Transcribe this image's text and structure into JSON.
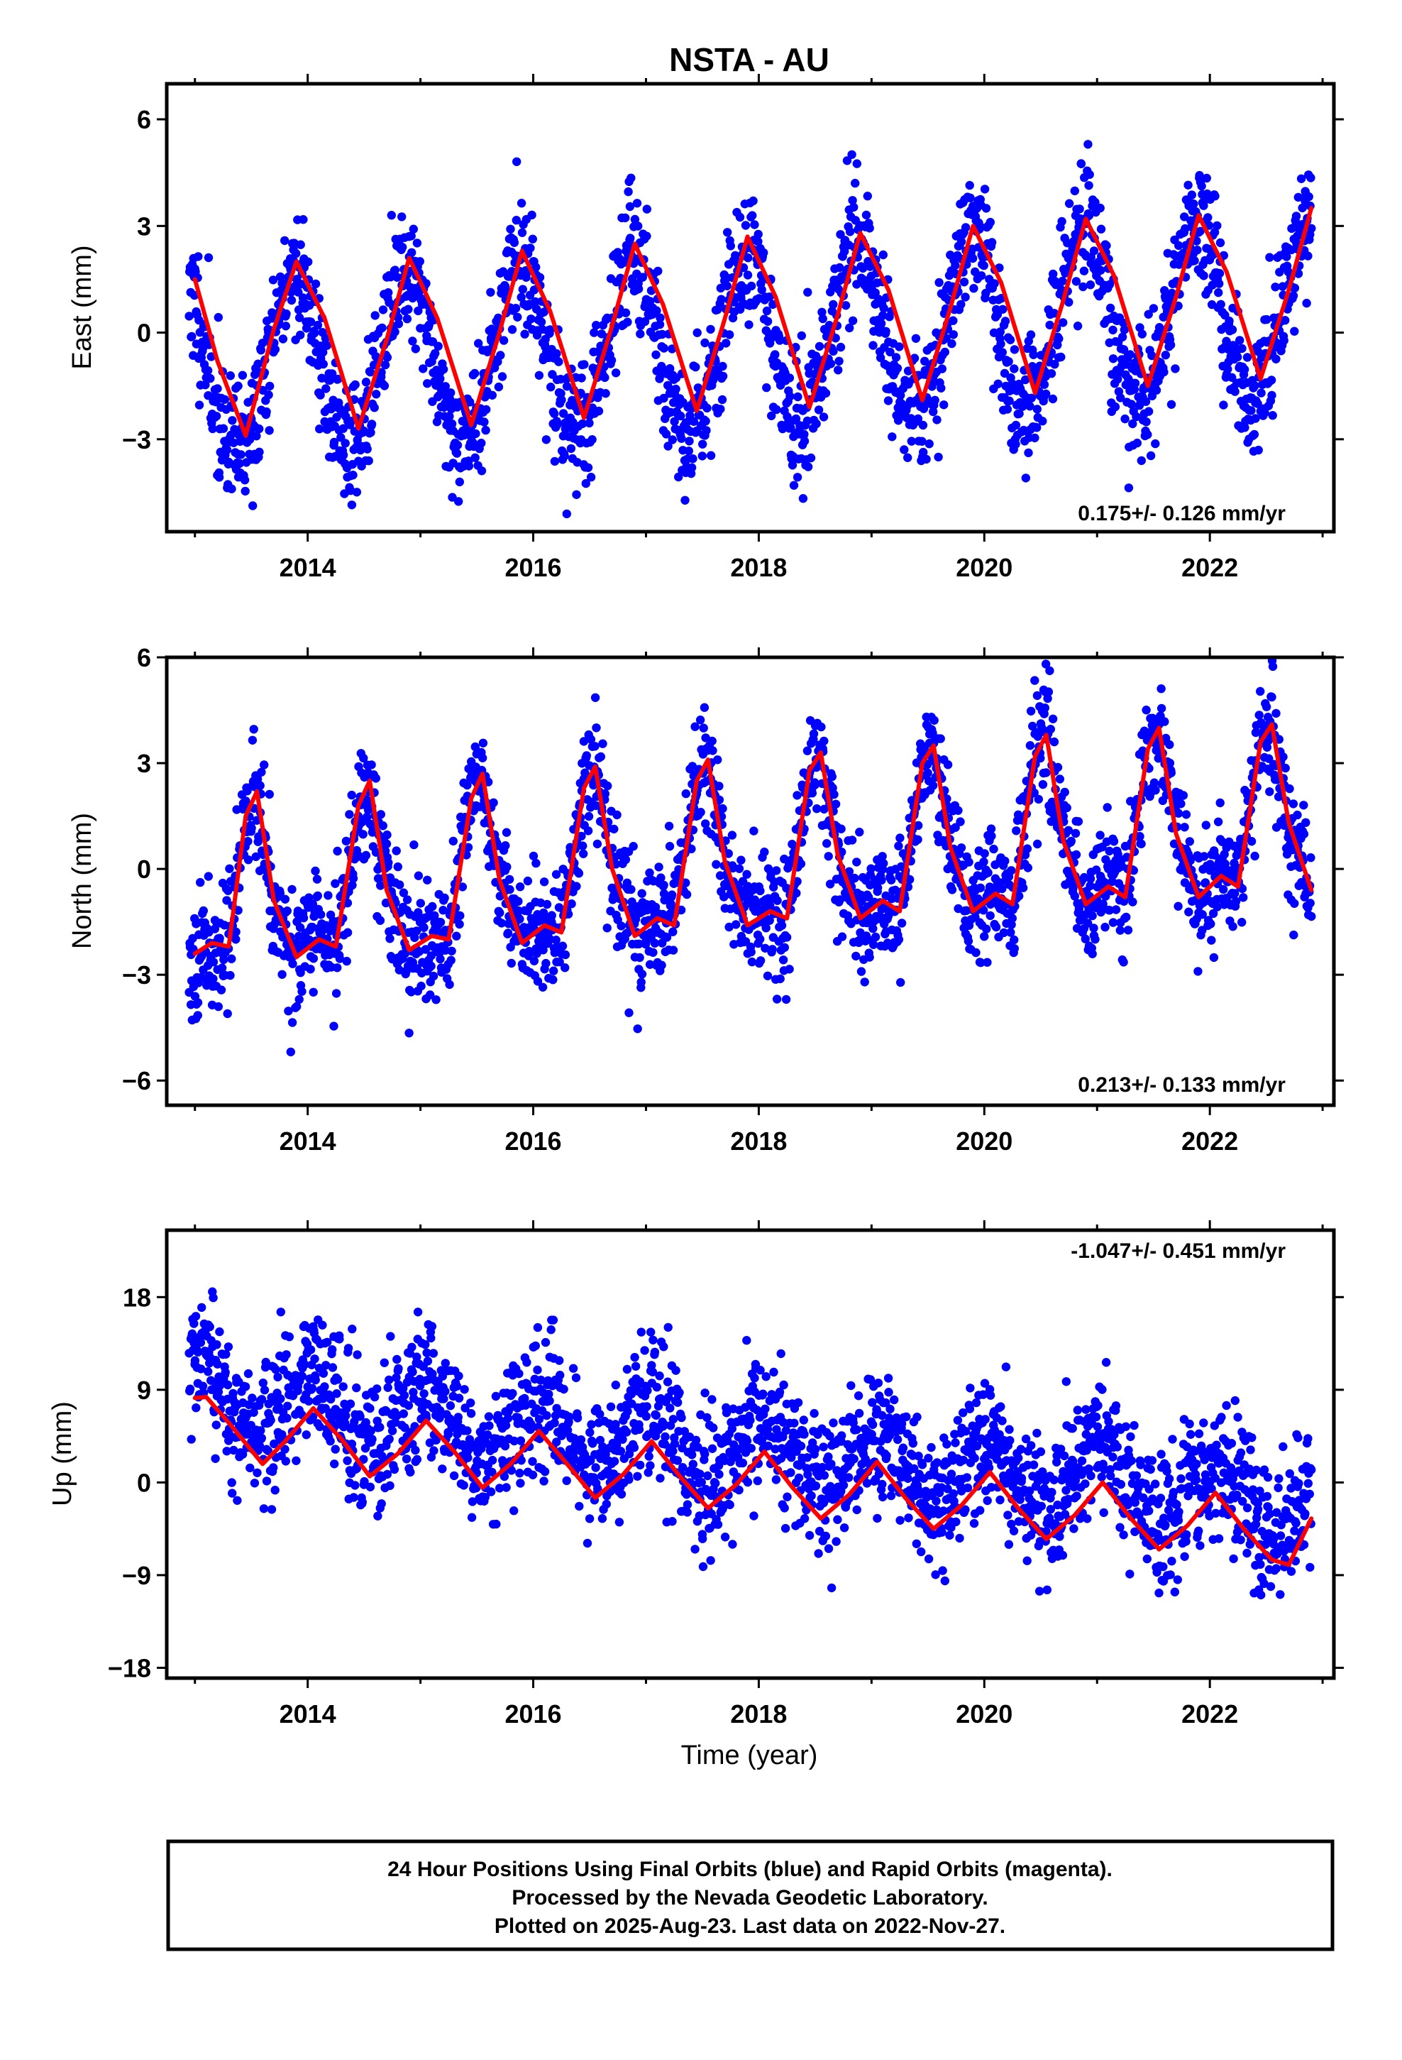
{
  "title": "NSTA - AU",
  "colors": {
    "final_orbits": "#0000ff",
    "rapid_orbits": "#ff00ff",
    "model_fit": "#ff0000",
    "frame": "#000000"
  },
  "xlabel": "Time (year)",
  "footer": {
    "line1": "24 Hour Positions Using Final Orbits (blue) and Rapid Orbits (magenta).",
    "line2": "Processed by the Nevada Geodetic Laboratory.",
    "line3": "Plotted on 2025-Aug-23. Last data on 2022-Nov-27."
  },
  "chart_data": [
    {
      "type": "scatter",
      "component": "east",
      "ylabel": "East (mm)",
      "xlim": [
        2012.75,
        2023.1
      ],
      "ylim": [
        -5.6,
        7.0
      ],
      "xticks": [
        2014,
        2016,
        2018,
        2020,
        2022
      ],
      "xtick_labels": [
        "2014",
        "2016",
        "2018",
        "2020",
        "2022"
      ],
      "yticks": [
        -3,
        0,
        3,
        6
      ],
      "ytick_labels": [
        "−3",
        "0",
        "3",
        "6"
      ],
      "rate_label": "0.175+/- 0.126 mm/yr",
      "rate_position": "bottom-right",
      "series": [
        {
          "kind": "points",
          "color": "#0000ff",
          "data_range": [
            2012.95,
            2022.9
          ],
          "scatter_sd": 0.9,
          "model": {
            "offset": -0.2,
            "trend": 0.175,
            "t0": 2017.9,
            "annual_amp": 2.45,
            "annual_peak": 2017.88,
            "semiannual_amp": 0.2,
            "semiannual_peak": 2017.9
          }
        },
        {
          "kind": "fit",
          "color": "#ff0000",
          "x": [
            2013.0,
            2013.2,
            2013.45,
            2013.7,
            2013.9,
            2014.15,
            2014.45,
            2014.7,
            2014.9,
            2015.15,
            2015.45,
            2015.7,
            2015.9,
            2016.15,
            2016.45,
            2016.7,
            2016.9,
            2017.15,
            2017.45,
            2017.7,
            2017.9,
            2018.15,
            2018.45,
            2018.7,
            2018.9,
            2019.15,
            2019.45,
            2019.7,
            2019.9,
            2020.15,
            2020.45,
            2020.7,
            2020.9,
            2021.15,
            2021.45,
            2021.7,
            2021.9,
            2022.15,
            2022.45,
            2022.7,
            2022.9
          ],
          "y": [
            1.5,
            -0.8,
            -2.9,
            0.1,
            2.0,
            0.4,
            -2.7,
            -0.2,
            2.1,
            0.4,
            -2.6,
            0.0,
            2.3,
            0.6,
            -2.4,
            0.2,
            2.5,
            0.8,
            -2.2,
            0.4,
            2.7,
            1.0,
            -2.1,
            0.5,
            2.8,
            1.2,
            -1.9,
            0.7,
            3.0,
            1.4,
            -1.7,
            0.9,
            3.2,
            1.6,
            -1.5,
            1.0,
            3.3,
            1.7,
            -1.3,
            1.2,
            3.5
          ]
        }
      ]
    },
    {
      "type": "scatter",
      "component": "north",
      "ylabel": "North (mm)",
      "xlim": [
        2012.75,
        2023.1
      ],
      "ylim": [
        -6.7,
        6.0
      ],
      "xticks": [
        2014,
        2016,
        2018,
        2020,
        2022
      ],
      "xtick_labels": [
        "2014",
        "2016",
        "2018",
        "2020",
        "2022"
      ],
      "yticks": [
        -6,
        -3,
        0,
        3,
        6
      ],
      "ytick_labels": [
        "−6",
        "−3",
        "0",
        "3",
        "6"
      ],
      "rate_label": "0.213+/- 0.133 mm/yr",
      "rate_position": "bottom-right",
      "series": [
        {
          "kind": "points",
          "color": "#0000ff",
          "data_range": [
            2012.95,
            2022.9
          ],
          "scatter_sd": 0.85,
          "fit_ref": true
        },
        {
          "kind": "fit",
          "color": "#ff0000",
          "x": [
            2013.0,
            2013.15,
            2013.3,
            2013.45,
            2013.55,
            2013.7,
            2013.9,
            2014.1,
            2014.25,
            2014.45,
            2014.55,
            2014.7,
            2014.9,
            2015.1,
            2015.25,
            2015.45,
            2015.55,
            2015.7,
            2015.9,
            2016.1,
            2016.25,
            2016.45,
            2016.55,
            2016.7,
            2016.9,
            2017.1,
            2017.25,
            2017.45,
            2017.55,
            2017.7,
            2017.9,
            2018.1,
            2018.25,
            2018.45,
            2018.55,
            2018.7,
            2018.9,
            2019.1,
            2019.25,
            2019.45,
            2019.55,
            2019.7,
            2019.9,
            2020.1,
            2020.25,
            2020.45,
            2020.55,
            2020.7,
            2020.9,
            2021.1,
            2021.25,
            2021.45,
            2021.55,
            2021.7,
            2021.9,
            2022.1,
            2022.25,
            2022.45,
            2022.55,
            2022.7,
            2022.9
          ],
          "y": [
            -2.4,
            -2.1,
            -2.2,
            1.5,
            2.2,
            -0.9,
            -2.5,
            -2.0,
            -2.2,
            1.8,
            2.5,
            -0.6,
            -2.3,
            -1.9,
            -2.0,
            2.0,
            2.7,
            -0.3,
            -2.1,
            -1.6,
            -1.8,
            2.3,
            2.9,
            0.0,
            -1.9,
            -1.4,
            -1.6,
            2.5,
            3.1,
            0.2,
            -1.6,
            -1.2,
            -1.4,
            2.8,
            3.3,
            0.4,
            -1.4,
            -0.9,
            -1.2,
            3.0,
            3.5,
            0.6,
            -1.2,
            -0.7,
            -1.0,
            3.2,
            3.8,
            0.8,
            -1.0,
            -0.5,
            -0.8,
            3.4,
            4.0,
            1.0,
            -0.8,
            -0.2,
            -0.5,
            3.6,
            4.1,
            1.3,
            -0.6
          ]
        }
      ]
    },
    {
      "type": "scatter",
      "component": "up",
      "ylabel": "Up (mm)",
      "xlim": [
        2012.75,
        2023.1
      ],
      "ylim": [
        -19.0,
        24.5
      ],
      "xticks": [
        2014,
        2016,
        2018,
        2020,
        2022
      ],
      "xtick_labels": [
        "2014",
        "2016",
        "2018",
        "2020",
        "2022"
      ],
      "yticks": [
        -18,
        -9,
        0,
        9,
        18
      ],
      "ytick_labels": [
        "−18",
        "−9",
        "0",
        "9",
        "18"
      ],
      "rate_label": "-1.047+/- 0.451 mm/yr",
      "rate_position": "top-right",
      "series": [
        {
          "kind": "points",
          "color": "#0000ff",
          "data_range": [
            2012.95,
            2022.9
          ],
          "scatter_sd": 3.3,
          "model": {
            "offset": 3.0,
            "trend": -1.047,
            "t0": 2017.9,
            "annual_amp": 3.2,
            "annual_peak": 2018.05,
            "semiannual_amp": 0.0,
            "semiannual_peak": 2018.0
          }
        },
        {
          "kind": "fit",
          "color": "#ff0000",
          "x": [
            2013.0,
            2013.1,
            2013.3,
            2013.6,
            2013.8,
            2014.05,
            2014.3,
            2014.55,
            2014.8,
            2015.05,
            2015.3,
            2015.55,
            2015.8,
            2016.05,
            2016.3,
            2016.55,
            2016.8,
            2017.05,
            2017.3,
            2017.55,
            2017.8,
            2018.05,
            2018.3,
            2018.55,
            2018.8,
            2019.05,
            2019.3,
            2019.55,
            2019.8,
            2020.05,
            2020.3,
            2020.55,
            2020.8,
            2021.05,
            2021.3,
            2021.55,
            2021.8,
            2022.05,
            2022.3,
            2022.55,
            2022.7,
            2022.9
          ],
          "y": [
            8.2,
            8.3,
            5.8,
            1.8,
            4.0,
            7.2,
            4.2,
            0.6,
            2.8,
            6.0,
            3.0,
            -0.5,
            1.8,
            5.0,
            1.8,
            -1.5,
            0.8,
            4.0,
            0.6,
            -2.5,
            -0.2,
            3.0,
            -0.5,
            -3.5,
            -1.2,
            2.0,
            -1.5,
            -4.5,
            -2.2,
            1.0,
            -2.5,
            -5.5,
            -3.2,
            0.0,
            -3.5,
            -6.5,
            -4.2,
            -1.0,
            -4.5,
            -7.5,
            -8.0,
            -3.5
          ]
        }
      ]
    }
  ]
}
